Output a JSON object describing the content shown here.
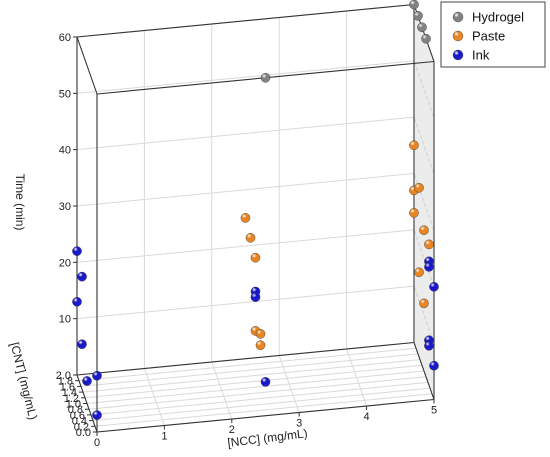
{
  "chart_data": {
    "type": "scatter3d",
    "title": "",
    "xlabel": "[NCC] (mg/mL)",
    "ylabel": "[CNT] (mg/mL)",
    "zlabel": "Time (min)",
    "xlim": [
      0,
      5
    ],
    "ylim": [
      0,
      2.0
    ],
    "zlim": [
      0,
      60
    ],
    "x_ticks": [
      "0",
      "1",
      "2",
      "3",
      "4",
      "5"
    ],
    "y_ticks": [
      "0.0",
      "0.2",
      "0.4",
      "0.6",
      "0.8",
      "1.0",
      "1.2",
      "1.4",
      "1.6",
      "1.8",
      "2.0"
    ],
    "z_ticks": [
      "10",
      "20",
      "30",
      "40",
      "50",
      "60"
    ],
    "grid": true,
    "legend_position": "top-right",
    "series": [
      {
        "name": "Hydrogel",
        "color": "#808080",
        "points": [
          {
            "x": 2.5,
            "y": 0.0,
            "z": 60
          },
          {
            "x": 5.0,
            "y": 2.0,
            "z": 60
          },
          {
            "x": 5.0,
            "y": 1.6,
            "z": 60
          },
          {
            "x": 5.0,
            "y": 1.2,
            "z": 60
          },
          {
            "x": 5.0,
            "y": 0.8,
            "z": 60
          }
        ]
      },
      {
        "name": "Paste",
        "color": "#e8821e",
        "points": [
          {
            "x": 2.5,
            "y": 2.0,
            "z": 25
          },
          {
            "x": 2.5,
            "y": 1.5,
            "z": 24
          },
          {
            "x": 2.5,
            "y": 1.0,
            "z": 23
          },
          {
            "x": 2.5,
            "y": 1.0,
            "z": 10
          },
          {
            "x": 2.5,
            "y": 0.5,
            "z": 12
          },
          {
            "x": 2.5,
            "y": 0.5,
            "z": 10
          },
          {
            "x": 5.0,
            "y": 2.0,
            "z": 35
          },
          {
            "x": 5.0,
            "y": 2.0,
            "z": 27
          },
          {
            "x": 5.0,
            "y": 2.0,
            "z": 23
          },
          {
            "x": 5.0,
            "y": 1.5,
            "z": 30
          },
          {
            "x": 5.0,
            "y": 1.5,
            "z": 15
          },
          {
            "x": 5.0,
            "y": 1.0,
            "z": 25
          },
          {
            "x": 5.0,
            "y": 0.5,
            "z": 25
          },
          {
            "x": 5.0,
            "y": 1.0,
            "z": 12
          }
        ]
      },
      {
        "name": "Ink",
        "color": "#1515c8",
        "points": [
          {
            "x": 0.0,
            "y": 2.0,
            "z": 22
          },
          {
            "x": 0.0,
            "y": 1.5,
            "z": 20
          },
          {
            "x": 0.0,
            "y": 2.0,
            "z": 13
          },
          {
            "x": 0.0,
            "y": 0.0,
            "z": 10
          },
          {
            "x": 0.0,
            "y": 1.5,
            "z": 8
          },
          {
            "x": 0.0,
            "y": 1.0,
            "z": 4
          },
          {
            "x": 0.0,
            "y": 0.0,
            "z": 3
          },
          {
            "x": 2.5,
            "y": 1.0,
            "z": 17
          },
          {
            "x": 2.5,
            "y": 1.0,
            "z": 16
          },
          {
            "x": 2.5,
            "y": 0.0,
            "z": 6
          },
          {
            "x": 5.0,
            "y": 0.5,
            "z": 22
          },
          {
            "x": 5.0,
            "y": 0.5,
            "z": 21
          },
          {
            "x": 5.0,
            "y": 0.0,
            "z": 20
          },
          {
            "x": 5.0,
            "y": 0.5,
            "z": 8
          },
          {
            "x": 5.0,
            "y": 0.5,
            "z": 7
          },
          {
            "x": 5.0,
            "y": 0.0,
            "z": 6
          }
        ]
      }
    ]
  }
}
